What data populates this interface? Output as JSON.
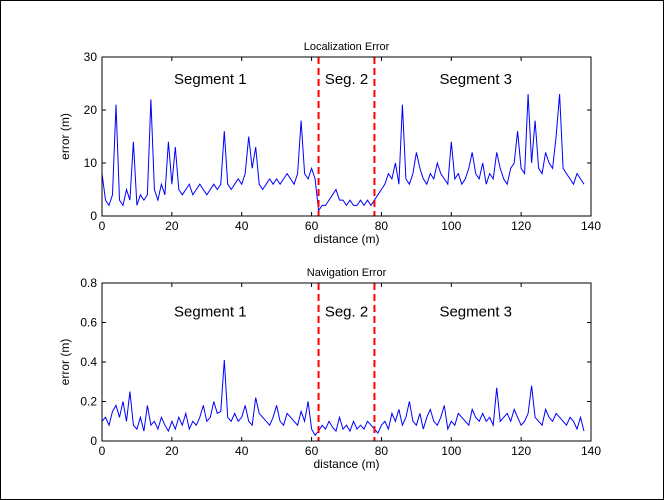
{
  "chart_data": [
    {
      "type": "line",
      "title": "Localization Error",
      "xlabel": "distance (m)",
      "ylabel": "error (m)",
      "xlim": [
        0,
        140
      ],
      "ylim": [
        0,
        30
      ],
      "xticks": [
        0,
        20,
        40,
        60,
        80,
        100,
        120,
        140
      ],
      "yticks": [
        0,
        10,
        20,
        30
      ],
      "grid": false,
      "series_color": "#0000ff",
      "divider_color": "#ff0000",
      "dividers": [
        62,
        78
      ],
      "segment_labels": [
        {
          "text": "Segment 1",
          "x": 31,
          "y": 26
        },
        {
          "text": "Seg. 2",
          "x": 70,
          "y": 26
        },
        {
          "text": "Segment 3",
          "x": 107,
          "y": 26
        }
      ],
      "x": [
        0,
        1,
        2,
        3,
        4,
        5,
        6,
        7,
        8,
        9,
        10,
        11,
        12,
        13,
        14,
        15,
        16,
        17,
        18,
        19,
        20,
        21,
        22,
        23,
        24,
        25,
        26,
        27,
        28,
        29,
        30,
        31,
        32,
        33,
        34,
        35,
        36,
        37,
        38,
        39,
        40,
        41,
        42,
        43,
        44,
        45,
        46,
        47,
        48,
        49,
        50,
        51,
        52,
        53,
        54,
        55,
        56,
        57,
        58,
        59,
        60,
        61,
        62,
        63,
        64,
        65,
        66,
        67,
        68,
        69,
        70,
        71,
        72,
        73,
        74,
        75,
        76,
        77,
        78,
        79,
        80,
        81,
        82,
        83,
        84,
        85,
        86,
        87,
        88,
        89,
        90,
        91,
        92,
        93,
        94,
        95,
        96,
        97,
        98,
        99,
        100,
        101,
        102,
        103,
        104,
        105,
        106,
        107,
        108,
        109,
        110,
        111,
        112,
        113,
        114,
        115,
        116,
        117,
        118,
        119,
        120,
        121,
        122,
        123,
        124,
        125,
        126,
        127,
        128,
        129,
        130,
        131,
        132,
        133,
        134,
        135,
        136,
        137,
        138
      ],
      "values": [
        8,
        3,
        2,
        4,
        21,
        3,
        2,
        5,
        3,
        14,
        2,
        4,
        3,
        4,
        22,
        5,
        3,
        6,
        4,
        14,
        6,
        13,
        5,
        4,
        5,
        6,
        4,
        5,
        6,
        5,
        4,
        5,
        6,
        5,
        6,
        16,
        6,
        5,
        6,
        7,
        6,
        8,
        15,
        9,
        13,
        6,
        5,
        6,
        7,
        6,
        7,
        6,
        7,
        8,
        7,
        6,
        8,
        18,
        8,
        7,
        9,
        7,
        1,
        2,
        2,
        3,
        4,
        5,
        3,
        3,
        2,
        3,
        2,
        2,
        3,
        2,
        3,
        2,
        3,
        4,
        5,
        6,
        8,
        7,
        10,
        6,
        21,
        7,
        6,
        8,
        12,
        9,
        7,
        6,
        8,
        7,
        10,
        8,
        7,
        6,
        14,
        7,
        8,
        6,
        7,
        9,
        12,
        8,
        7,
        10,
        6,
        8,
        7,
        12,
        9,
        7,
        6,
        9,
        10,
        16,
        9,
        8,
        23,
        10,
        18,
        9,
        8,
        12,
        10,
        9,
        15,
        23,
        9,
        8,
        7,
        6,
        8,
        7,
        6
      ]
    },
    {
      "type": "line",
      "title": "Navigation Error",
      "xlabel": "distance (m)",
      "ylabel": "error (m)",
      "xlim": [
        0,
        140
      ],
      "ylim": [
        0,
        0.8
      ],
      "xticks": [
        0,
        20,
        40,
        60,
        80,
        100,
        120,
        140
      ],
      "yticks": [
        0,
        0.2,
        0.4,
        0.6,
        0.8
      ],
      "grid": false,
      "series_color": "#0000ff",
      "divider_color": "#ff0000",
      "dividers": [
        62,
        78
      ],
      "segment_labels": [
        {
          "text": "Segment 1",
          "x": 31,
          "y": 0.66
        },
        {
          "text": "Seg. 2",
          "x": 70,
          "y": 0.66
        },
        {
          "text": "Segment 3",
          "x": 107,
          "y": 0.66
        }
      ],
      "x": [
        0,
        1,
        2,
        3,
        4,
        5,
        6,
        7,
        8,
        9,
        10,
        11,
        12,
        13,
        14,
        15,
        16,
        17,
        18,
        19,
        20,
        21,
        22,
        23,
        24,
        25,
        26,
        27,
        28,
        29,
        30,
        31,
        32,
        33,
        34,
        35,
        36,
        37,
        38,
        39,
        40,
        41,
        42,
        43,
        44,
        45,
        46,
        47,
        48,
        49,
        50,
        51,
        52,
        53,
        54,
        55,
        56,
        57,
        58,
        59,
        60,
        61,
        62,
        63,
        64,
        65,
        66,
        67,
        68,
        69,
        70,
        71,
        72,
        73,
        74,
        75,
        76,
        77,
        78,
        79,
        80,
        81,
        82,
        83,
        84,
        85,
        86,
        87,
        88,
        89,
        90,
        91,
        92,
        93,
        94,
        95,
        96,
        97,
        98,
        99,
        100,
        101,
        102,
        103,
        104,
        105,
        106,
        107,
        108,
        109,
        110,
        111,
        112,
        113,
        114,
        115,
        116,
        117,
        118,
        119,
        120,
        121,
        122,
        123,
        124,
        125,
        126,
        127,
        128,
        129,
        130,
        131,
        132,
        133,
        134,
        135,
        136,
        137,
        138
      ],
      "values": [
        0.1,
        0.12,
        0.08,
        0.15,
        0.18,
        0.12,
        0.2,
        0.1,
        0.25,
        0.08,
        0.06,
        0.12,
        0.05,
        0.18,
        0.08,
        0.1,
        0.06,
        0.12,
        0.08,
        0.05,
        0.1,
        0.06,
        0.12,
        0.08,
        0.14,
        0.06,
        0.1,
        0.08,
        0.12,
        0.18,
        0.1,
        0.12,
        0.2,
        0.14,
        0.15,
        0.41,
        0.12,
        0.1,
        0.14,
        0.1,
        0.12,
        0.18,
        0.1,
        0.08,
        0.22,
        0.14,
        0.12,
        0.1,
        0.08,
        0.12,
        0.18,
        0.1,
        0.08,
        0.14,
        0.12,
        0.1,
        0.08,
        0.15,
        0.1,
        0.2,
        0.06,
        0.03,
        0.05,
        0.08,
        0.06,
        0.1,
        0.07,
        0.05,
        0.12,
        0.06,
        0.08,
        0.05,
        0.1,
        0.06,
        0.08,
        0.06,
        0.1,
        0.08,
        0.06,
        0.04,
        0.08,
        0.1,
        0.06,
        0.14,
        0.1,
        0.16,
        0.08,
        0.12,
        0.2,
        0.1,
        0.08,
        0.14,
        0.06,
        0.12,
        0.16,
        0.1,
        0.08,
        0.12,
        0.18,
        0.06,
        0.1,
        0.08,
        0.14,
        0.12,
        0.1,
        0.08,
        0.16,
        0.12,
        0.1,
        0.14,
        0.1,
        0.12,
        0.08,
        0.27,
        0.1,
        0.12,
        0.14,
        0.1,
        0.16,
        0.12,
        0.08,
        0.1,
        0.14,
        0.28,
        0.12,
        0.1,
        0.08,
        0.16,
        0.12,
        0.1,
        0.14,
        0.12,
        0.1,
        0.08,
        0.12,
        0.1,
        0.06,
        0.12,
        0.05
      ]
    }
  ]
}
